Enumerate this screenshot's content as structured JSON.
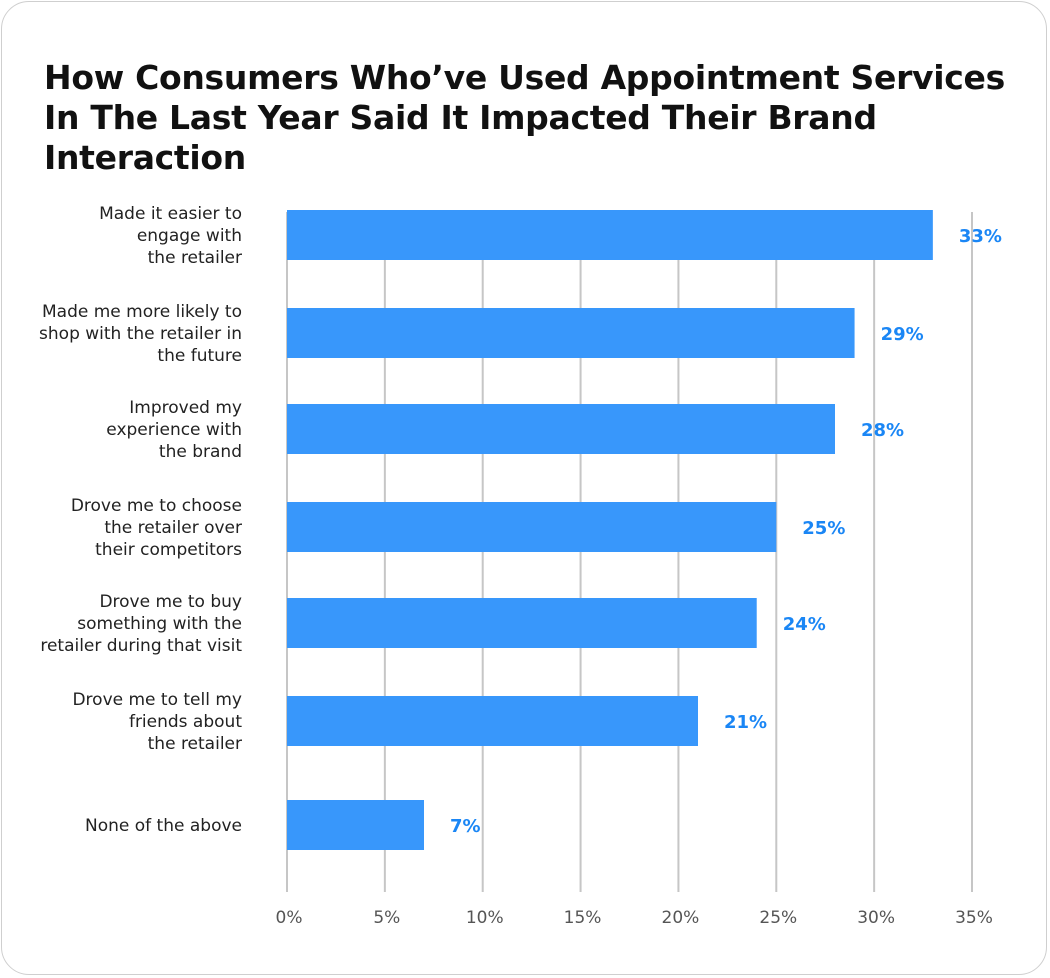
{
  "chart_data": {
    "type": "bar",
    "orientation": "horizontal",
    "title": "How Consumers Who’ve Used Appointment Services In The Last Year Said It Impacted Their Brand Interaction",
    "categories": [
      [
        "Made it easier to",
        "engage with",
        "the retailer"
      ],
      [
        "Made me more likely to",
        "shop with the retailer in",
        "the future"
      ],
      [
        "Improved my",
        "experience with",
        "the brand"
      ],
      [
        "Drove me to choose",
        "the retailer over",
        "their competitors"
      ],
      [
        "Drove me to buy",
        "something with the",
        "retailer during that visit"
      ],
      [
        "Drove me to tell my",
        "friends about",
        "the retailer"
      ],
      [
        "None of the above"
      ]
    ],
    "values": [
      33,
      29,
      28,
      25,
      24,
      21,
      7
    ],
    "data_labels": [
      "33%",
      "29%",
      "28%",
      "25%",
      "24%",
      "21%",
      "7%"
    ],
    "xlim": [
      0,
      35
    ],
    "xticks": [
      "0%",
      "5%",
      "10%",
      "15%",
      "20%",
      "25%",
      "30%",
      "35%"
    ],
    "grid": true,
    "bar_color": "#3897fb",
    "label_color": "#1a86f5"
  }
}
